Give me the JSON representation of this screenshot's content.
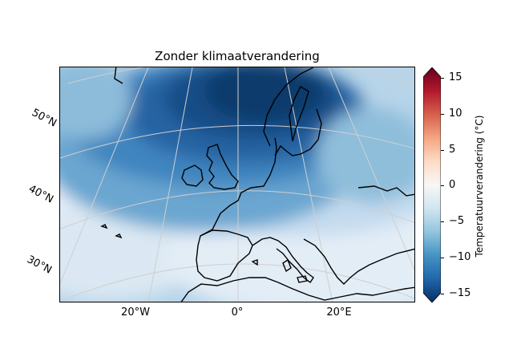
{
  "title": "Zonder klimaatverandering",
  "lat_labels": [
    "50°N",
    "40°N",
    "30°N"
  ],
  "lon_labels": [
    "20°W",
    "0°",
    "20°E"
  ],
  "colorbar": {
    "label": "Temperatuurverandering (°C)",
    "ticks": [
      "15",
      "10",
      "5",
      "0",
      "−5",
      "−10",
      "−15"
    ],
    "min": -15,
    "max": 15,
    "colors_high_to_low": [
      "#67001f",
      "#b2182b",
      "#d6604d",
      "#f4a582",
      "#fddbc7",
      "#f7f7f7",
      "#d1e5f0",
      "#92c5de",
      "#4393c3",
      "#2166ac",
      "#053061"
    ]
  },
  "map": {
    "projection": "lambert-conformal",
    "coast_color": "#000000",
    "grid_color": "#cfcfcf"
  }
}
